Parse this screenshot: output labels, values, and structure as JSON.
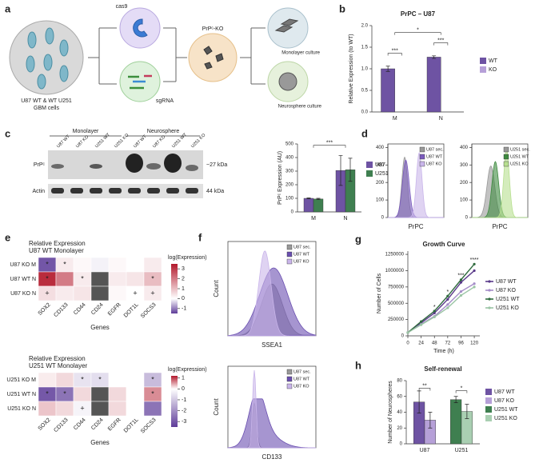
{
  "panel_letters": [
    "a",
    "b",
    "c",
    "d",
    "e",
    "f",
    "g",
    "h"
  ],
  "diagram": {
    "cas9": "cas9",
    "sgrna": "sgRNA",
    "ko": "PrPᶜ-KO",
    "monolayer": "Monolayer culture",
    "neurosphere": "Neurosphere culture",
    "cells_line1": "U87 WT & WT U251",
    "cells_line2": "GBM cells"
  },
  "blot": {
    "groups": [
      "Monolayer",
      "Neurosphere"
    ],
    "lanes": [
      "U87 WT",
      "U87 KO",
      "U251 WT",
      "U251 KO",
      "U87 WT",
      "U87 KO",
      "U251 WT",
      "U251 KO"
    ],
    "rows": [
      "PrPᶜ",
      "Actin"
    ],
    "sizes": [
      "~27 kDa",
      "44 kDa"
    ]
  },
  "chart_data": [
    {
      "type": "bar",
      "title": "PrPC – U87",
      "ylabel": "Relative Expression (to WT)",
      "categories": [
        "M",
        "N"
      ],
      "series": [
        {
          "name": "WT",
          "color": "#6e53a3",
          "values": [
            1.0,
            1.27
          ],
          "errors": [
            0.06,
            0.03
          ]
        },
        {
          "name": "KO",
          "color": "#b6a0d8",
          "values": [
            0,
            0
          ]
        }
      ],
      "ylim": [
        0,
        2
      ],
      "yticks": [
        {
          "value": 0,
          "label": "0.0"
        },
        0.5,
        {
          "value": 1,
          "label": "1.0"
        },
        1.5,
        {
          "value": 2,
          "label": "2.0"
        }
      ],
      "annotations": [
        "***",
        "*",
        "***"
      ]
    },
    {
      "type": "bar",
      "ylabel": "PrPᶜ Expression (AU)",
      "categories": [
        "M",
        "N"
      ],
      "series": [
        {
          "name": "U87",
          "color": "#6e53a3",
          "values": [
            100,
            305
          ],
          "errors": [
            3,
            110
          ]
        },
        {
          "name": "U251",
          "color": "#3f7f50",
          "values": [
            95,
            310
          ],
          "errors": [
            5,
            85
          ]
        }
      ],
      "ylim": [
        0,
        500
      ],
      "yticks": [
        0,
        100,
        200,
        300,
        400,
        500
      ],
      "annotations": [
        "***"
      ]
    },
    {
      "type": "line",
      "title": "Growth Curve",
      "xlabel": "Time (h)",
      "ylabel": "Number of Cells",
      "x": [
        0,
        24,
        48,
        72,
        96,
        120
      ],
      "xlim": [
        0,
        130
      ],
      "xticks": [
        0,
        24,
        48,
        72,
        96,
        120
      ],
      "ylim": [
        0,
        1300000
      ],
      "yticks": [
        0,
        250000,
        500000,
        750000,
        1000000,
        1250000
      ],
      "series": [
        {
          "name": "U87 WT",
          "color": "#5a3a8a",
          "values": [
            50000,
            200000,
            350000,
            560000,
            820000,
            1000000
          ]
        },
        {
          "name": "U87 KO",
          "color": "#a48cc8",
          "values": [
            50000,
            180000,
            300000,
            480000,
            680000,
            800000
          ]
        },
        {
          "name": "U251 WT",
          "color": "#2f6b3e",
          "values": [
            50000,
            220000,
            380000,
            610000,
            860000,
            1100000
          ]
        },
        {
          "name": "U251 KO",
          "color": "#9bc5a5",
          "values": [
            50000,
            170000,
            290000,
            430000,
            620000,
            750000
          ]
        }
      ],
      "annotations": [
        {
          "text": "*",
          "x": 48
        },
        {
          "text": "*",
          "x": 72
        },
        {
          "text": "***",
          "x": 96
        },
        {
          "text": "****",
          "x": 120
        }
      ]
    },
    {
      "type": "bar",
      "title": "Self-renewal",
      "ylabel": "Number of Neurospheres",
      "categories": [
        "U87",
        "U251"
      ],
      "series": [
        {
          "name": "U87 WT",
          "color": "#6e53a3",
          "values": [
            53,
            null
          ],
          "errors": [
            14,
            null
          ]
        },
        {
          "name": "U87 KO",
          "color": "#b6a0d8",
          "values": [
            30,
            null
          ],
          "errors": [
            10,
            null
          ]
        },
        {
          "name": "U251 WT",
          "color": "#3f7f50",
          "values": [
            null,
            56
          ],
          "errors": [
            null,
            4
          ]
        },
        {
          "name": "U251 KO",
          "color": "#a9cfb2",
          "values": [
            null,
            41
          ],
          "errors": [
            null,
            9
          ]
        }
      ],
      "ylim": [
        0,
        80
      ],
      "yticks": [
        0,
        20,
        40,
        60,
        80
      ],
      "annotations": [
        "**",
        "*"
      ]
    },
    {
      "type": "heatmap",
      "title": "Relative Expression",
      "subtitle": "U87 WT Monolayer",
      "xlabel": "Genes",
      "rows": [
        "U87 KO M",
        "U87 WT N",
        "U87 KO N"
      ],
      "columns": [
        "SOX2",
        "CD133",
        "CD44",
        "CD24",
        "EGFR",
        "DOT1L",
        "SOCS3"
      ],
      "values": [
        [
          -1.3,
          0.3,
          0.1,
          -0.1,
          0.1,
          0.0,
          0.3
        ],
        [
          3.2,
          2.0,
          0.3,
          null,
          0.3,
          0.4,
          1.0
        ],
        [
          0.5,
          0.3,
          0.4,
          null,
          0.1,
          0.0,
          0.3
        ]
      ],
      "marks": [
        [
          "*",
          "*",
          null,
          null,
          null,
          null,
          null
        ],
        [
          "*",
          null,
          "*",
          null,
          null,
          null,
          "*"
        ],
        [
          "+",
          null,
          null,
          null,
          null,
          "+",
          "+"
        ]
      ],
      "colorbar_title": "log(Expression)",
      "clim": [
        -1.5,
        3.5
      ],
      "cticks": [
        3,
        2,
        1,
        0,
        -1
      ]
    },
    {
      "type": "heatmap",
      "title": "Relative Expression",
      "subtitle": "U251 WT Monolayer",
      "xlabel": "Genes",
      "rows": [
        "U251 KO M",
        "U251 WT N",
        "U251 KO N"
      ],
      "columns": [
        "SOX2",
        "CD133",
        "CD44",
        "CD24",
        "EGFR",
        "DOT1L",
        "SOCS3"
      ],
      "values": [
        [
          0.1,
          0.2,
          -0.5,
          -0.6,
          0.0,
          0.0,
          -1.2
        ],
        [
          -3.0,
          -2.5,
          0.2,
          null,
          0.2,
          0.0,
          0.6
        ],
        [
          0.3,
          0.2,
          -0.2,
          null,
          0.2,
          0.0,
          -2.5
        ]
      ],
      "marks": [
        [
          null,
          null,
          "*",
          "*",
          null,
          null,
          "*"
        ],
        [
          "*",
          "*",
          null,
          null,
          null,
          null,
          "*"
        ],
        [
          null,
          null,
          "+",
          null,
          null,
          null,
          null
        ]
      ],
      "colorbar_title": "log(Expression)",
      "clim": [
        -3.5,
        1.2
      ],
      "cticks": [
        1,
        0,
        -1,
        -2,
        -3
      ]
    }
  ],
  "histograms": [
    {
      "ylim": [
        0,
        420
      ],
      "yticks": [
        0,
        100,
        200,
        300,
        400
      ],
      "xlabel": "PrPC",
      "legend": [
        {
          "name": "U87 sec.",
          "color": "#999999"
        },
        {
          "name": "U87 WT",
          "color": "#7a5bbd"
        },
        {
          "name": "U87 KO",
          "color": "#c9b5ea"
        }
      ]
    },
    {
      "ylim": [
        0,
        420
      ],
      "yticks": [
        0,
        100,
        200,
        300,
        400
      ],
      "xlabel": "PrPC",
      "legend": [
        {
          "name": "U251 sec.",
          "color": "#999999"
        },
        {
          "name": "U251 WT",
          "color": "#3d8a3f"
        },
        {
          "name": "U251 KO",
          "color": "#b7e08f"
        }
      ]
    },
    {
      "xlabel": "SSEA1",
      "ylabel": "Count",
      "legend": [
        {
          "name": "U87 sec.",
          "color": "#999999"
        },
        {
          "name": "U87 WT",
          "color": "#6a4fb0"
        },
        {
          "name": "U87 KO",
          "color": "#c9b5ea"
        }
      ]
    },
    {
      "xlabel": "CD133",
      "ylabel": "Count",
      "legend": [
        {
          "name": "U87 sec.",
          "color": "#999999"
        },
        {
          "name": "U87 WT",
          "color": "#6a4fb0"
        },
        {
          "name": "U87 KO",
          "color": "#c9b5ea"
        }
      ]
    }
  ]
}
